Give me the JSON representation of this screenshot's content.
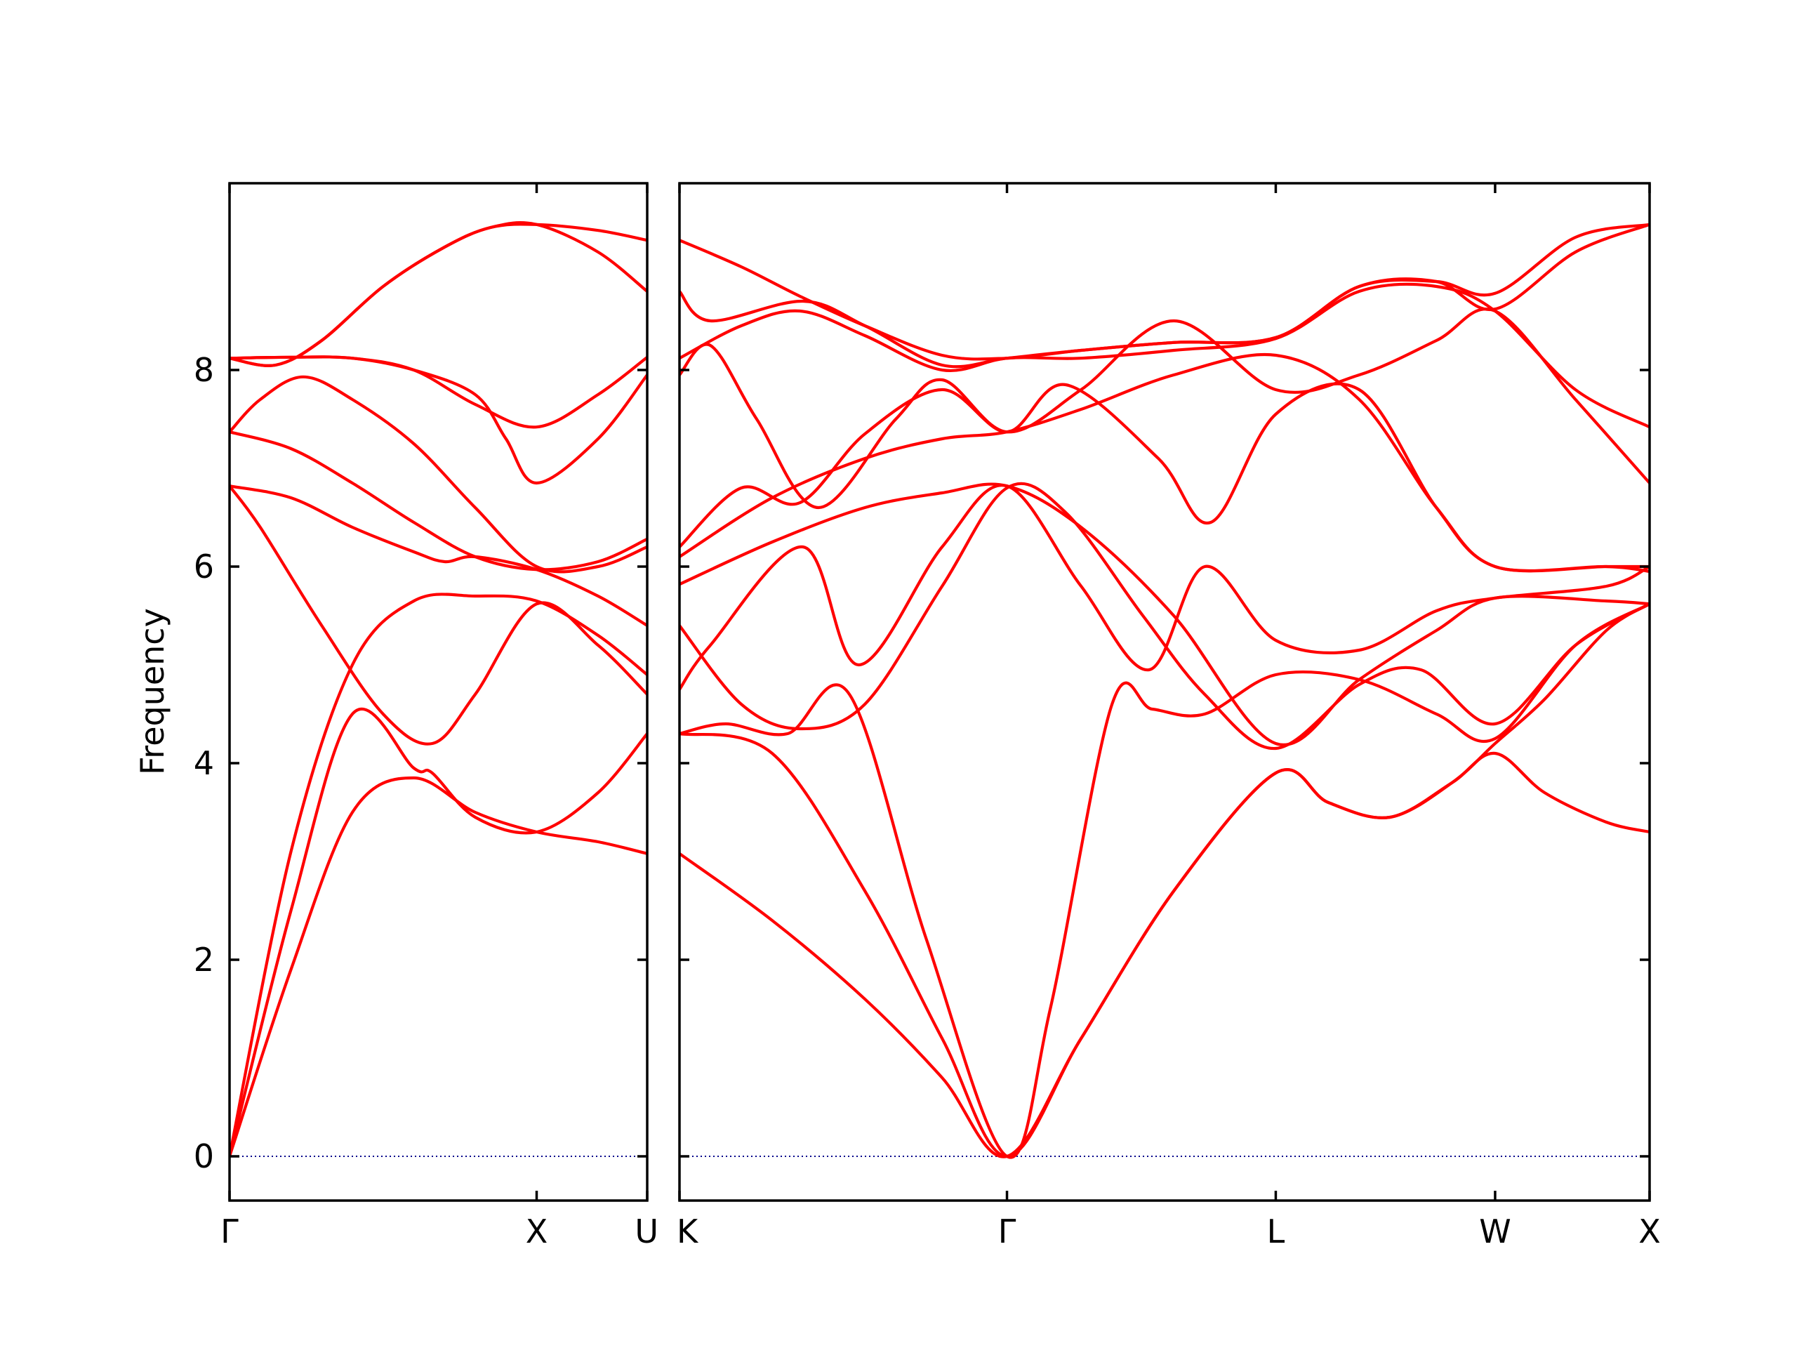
{
  "chart_data": {
    "type": "line",
    "title": "",
    "ylabel": "Frequency",
    "ylim": [
      -0.45,
      9.9
    ],
    "yticks": [
      0,
      2,
      4,
      6,
      8
    ],
    "grid": false,
    "colors": {
      "bands": "#ff0000",
      "zero_line": "#00008b",
      "axes": "#000000"
    },
    "panels": [
      {
        "xlabels": [
          "Γ",
          "X",
          "U"
        ],
        "xticks": [
          0,
          1,
          1.36
        ],
        "xlim": [
          0,
          1.36
        ],
        "series": [
          {
            "x": [
              0,
              0.2,
              0.4,
              0.6,
              0.8,
              1.0,
              1.2,
              1.36
            ],
            "y": [
              0,
              1.9,
              3.5,
              3.85,
              3.5,
              3.3,
              3.2,
              3.08
            ]
          },
          {
            "x": [
              0,
              0.2,
              0.4,
              0.6,
              0.66,
              0.8,
              1.0,
              1.2,
              1.36
            ],
            "y": [
              0,
              2.5,
              4.5,
              3.95,
              3.9,
              3.45,
              3.3,
              3.7,
              4.3
            ]
          },
          {
            "x": [
              0,
              0.1,
              0.3,
              0.5,
              0.66,
              0.8,
              1.0,
              1.2,
              1.36
            ],
            "y": [
              6.82,
              6.4,
              5.4,
              4.5,
              4.2,
              4.7,
              5.62,
              5.2,
              4.7
            ]
          },
          {
            "x": [
              0,
              0.2,
              0.4,
              0.6,
              0.8,
              1.0,
              1.2,
              1.36
            ],
            "y": [
              0,
              3.1,
              5.0,
              5.65,
              5.7,
              5.65,
              5.3,
              4.9
            ]
          },
          {
            "x": [
              0,
              0.2,
              0.4,
              0.6,
              0.7,
              0.8,
              1.0,
              1.2,
              1.36
            ],
            "y": [
              6.82,
              6.7,
              6.4,
              6.15,
              6.05,
              6.1,
              5.97,
              5.7,
              5.4
            ]
          },
          {
            "x": [
              0,
              0.2,
              0.4,
              0.6,
              0.8,
              1.0,
              1.2,
              1.36
            ],
            "y": [
              7.37,
              7.2,
              6.85,
              6.45,
              6.1,
              5.97,
              6.05,
              6.28
            ]
          },
          {
            "x": [
              0,
              0.1,
              0.24,
              0.4,
              0.6,
              0.8,
              1.0,
              1.2,
              1.36
            ],
            "y": [
              7.37,
              7.7,
              7.93,
              7.7,
              7.25,
              6.6,
              6.0,
              6.0,
              6.2
            ]
          },
          {
            "x": [
              0,
              0.2,
              0.4,
              0.6,
              0.8,
              0.9,
              1.0,
              1.2,
              1.36
            ],
            "y": [
              8.12,
              8.13,
              8.12,
              8.0,
              7.75,
              7.3,
              6.85,
              7.3,
              7.95
            ]
          },
          {
            "x": [
              0,
              0.2,
              0.4,
              0.6,
              0.8,
              1.0,
              1.2,
              1.36
            ],
            "y": [
              8.12,
              8.13,
              8.12,
              8.0,
              7.65,
              7.42,
              7.75,
              8.13
            ]
          },
          {
            "x": [
              0,
              0.15,
              0.3,
              0.5,
              0.7,
              0.85,
              1.0,
              1.2,
              1.36
            ],
            "y": [
              8.12,
              8.05,
              8.3,
              8.85,
              9.25,
              9.45,
              9.48,
              9.42,
              9.32
            ]
          },
          {
            "x": [
              0,
              0.15,
              0.3,
              0.5,
              0.7,
              0.85,
              1.0,
              1.2,
              1.36
            ],
            "y": [
              8.12,
              8.05,
              8.3,
              8.85,
              9.25,
              9.45,
              9.48,
              9.2,
              8.8
            ]
          }
        ]
      },
      {
        "xlabels": [
          "K",
          "Γ",
          "L",
          "W",
          "X"
        ],
        "xticks": [
          0,
          1.06,
          1.93,
          2.64,
          3.14
        ],
        "xlim": [
          0,
          3.14
        ],
        "series": [
          {
            "x": [
              0,
              0.3,
              0.6,
              0.85,
              1.06,
              1.3,
              1.6,
              1.93,
              2.1,
              2.3,
              2.5,
              2.64,
              2.8,
              3.0,
              3.14
            ],
            "y": [
              3.08,
              2.4,
              1.6,
              0.8,
              0,
              1.2,
              2.7,
              3.9,
              3.6,
              3.45,
              3.8,
              4.1,
              3.7,
              3.4,
              3.3
            ]
          },
          {
            "x": [
              0,
              0.3,
              0.6,
              0.85,
              1.06,
              1.3,
              1.6,
              1.93,
              2.1,
              2.3,
              2.5,
              2.64,
              2.8,
              3.0,
              3.14
            ],
            "y": [
              4.3,
              4.1,
              2.7,
              1.2,
              0,
              1.2,
              2.7,
              3.9,
              3.6,
              3.45,
              3.8,
              4.2,
              4.65,
              5.35,
              5.62
            ]
          },
          {
            "x": [
              0,
              0.15,
              0.35,
              0.55,
              0.8,
              1.06,
              1.2,
              1.4,
              1.53,
              1.7,
              1.93,
              2.2,
              2.45,
              2.64,
              2.9,
              3.14
            ],
            "y": [
              4.3,
              4.4,
              4.3,
              4.7,
              2.2,
              0,
              1.5,
              4.6,
              4.55,
              4.5,
              4.9,
              4.85,
              4.5,
              4.25,
              5.2,
              5.62
            ]
          },
          {
            "x": [
              0,
              0.2,
              0.39,
              0.6,
              0.85,
              1.06,
              1.25,
              1.5,
              1.7,
              1.93,
              2.2,
              2.4,
              2.64,
              2.9,
              3.14
            ],
            "y": [
              5.4,
              4.6,
              4.35,
              4.6,
              5.8,
              6.8,
              6.55,
              5.5,
              4.7,
              4.15,
              4.8,
              4.95,
              4.4,
              5.2,
              5.62
            ]
          },
          {
            "x": [
              0,
              0.1,
              0.4,
              0.58,
              0.85,
              1.06,
              1.3,
              1.52,
              1.7,
              1.93,
              2.2,
              2.45,
              2.64,
              3.0,
              3.14
            ],
            "y": [
              4.75,
              5.2,
              6.2,
              5.0,
              6.2,
              6.82,
              5.8,
              4.95,
              6.0,
              5.25,
              5.15,
              5.55,
              5.68,
              5.8,
              6.0
            ]
          },
          {
            "x": [
              0,
              0.3,
              0.6,
              0.85,
              1.06,
              1.3,
              1.6,
              1.93,
              2.2,
              2.45,
              2.64,
              3.0,
              3.14
            ],
            "y": [
              5.82,
              6.25,
              6.6,
              6.75,
              6.82,
              6.4,
              5.5,
              4.2,
              4.85,
              5.35,
              5.68,
              5.65,
              5.62
            ]
          },
          {
            "x": [
              0,
              0.3,
              0.6,
              0.85,
              1.06,
              1.3,
              1.6,
              1.93,
              2.2,
              2.45,
              2.64,
              3.0,
              3.14
            ],
            "y": [
              6.1,
              6.7,
              7.1,
              7.3,
              7.37,
              7.6,
              7.95,
              8.15,
              7.7,
              6.6,
              6.0,
              6.0,
              5.95
            ]
          },
          {
            "x": [
              0,
              0.2,
              0.39,
              0.6,
              0.85,
              1.06,
              1.25,
              1.55,
              1.72,
              1.93,
              2.2,
              2.45,
              2.64,
              3.0,
              3.14
            ],
            "y": [
              6.2,
              6.8,
              6.65,
              7.35,
              7.8,
              7.37,
              7.85,
              7.1,
              6.45,
              7.55,
              7.8,
              6.6,
              6.0,
              6.0,
              6.0
            ]
          },
          {
            "x": [
              0,
              0.1,
              0.25,
              0.45,
              0.7,
              0.85,
              1.06,
              1.3,
              1.6,
              1.93,
              2.2,
              2.45,
              2.64,
              2.9,
              3.14
            ],
            "y": [
              7.95,
              8.25,
              7.5,
              6.6,
              7.5,
              7.9,
              7.37,
              7.8,
              8.5,
              7.8,
              7.95,
              8.3,
              8.6,
              7.7,
              6.85
            ]
          },
          {
            "x": [
              0,
              0.2,
              0.39,
              0.6,
              0.85,
              1.06,
              1.3,
              1.6,
              1.93,
              2.2,
              2.45,
              2.64,
              2.9,
              3.14
            ],
            "y": [
              8.12,
              8.45,
              8.6,
              8.35,
              8.0,
              8.12,
              8.12,
              8.2,
              8.32,
              8.8,
              8.85,
              8.6,
              7.8,
              7.42
            ]
          },
          {
            "x": [
              0,
              0.1,
              0.4,
              0.6,
              0.85,
              1.06,
              1.3,
              1.6,
              1.93,
              2.2,
              2.45,
              2.64,
              2.9,
              3.14
            ],
            "y": [
              8.8,
              8.5,
              8.7,
              8.45,
              8.05,
              8.12,
              8.2,
              8.28,
              8.33,
              8.85,
              8.9,
              8.78,
              9.35,
              9.48
            ]
          },
          {
            "x": [
              0,
              0.2,
              0.39,
              0.6,
              0.85,
              1.06,
              1.3,
              1.6,
              1.93,
              2.2,
              2.45,
              2.64,
              2.9,
              3.14
            ],
            "y": [
              9.32,
              9.05,
              8.75,
              8.45,
              8.15,
              8.12,
              8.2,
              8.28,
              8.33,
              8.85,
              8.9,
              8.62,
              9.2,
              9.48
            ]
          }
        ]
      }
    ]
  }
}
